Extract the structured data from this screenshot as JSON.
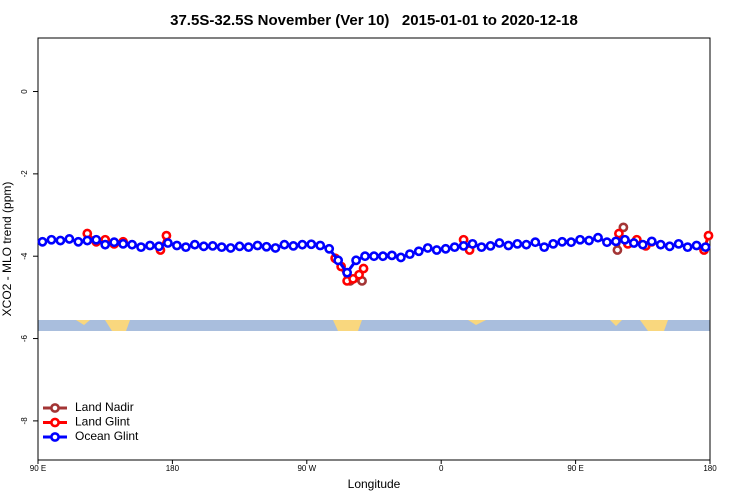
{
  "chart_data": {
    "type": "line",
    "title": "37.5S-32.5S November (Ver 10)   2015-01-01 to 2020-12-18",
    "x_label": "Longitude",
    "y_label": "XCO2 - MLO trend (ppm)",
    "xlim": [
      90,
      540
    ],
    "ylim": [
      -8.95,
      1.3
    ],
    "xticks": [
      {
        "value": 90,
        "label": "90 E"
      },
      {
        "value": 180,
        "label": "180"
      },
      {
        "value": 270,
        "label": "90 W"
      },
      {
        "value": 360,
        "label": "0"
      },
      {
        "value": 450,
        "label": "90 E"
      },
      {
        "value": 540,
        "label": "180"
      }
    ],
    "yticks": [
      0,
      -2,
      -4,
      -6,
      -8
    ],
    "legend": "bottom-left",
    "series": [
      {
        "name": "Land Nadir",
        "color": "#a33535",
        "x": [
          299,
          307,
          null,
          478,
          482
        ],
        "values": [
          -4.6,
          -4.6,
          null,
          -3.85,
          -3.3
        ]
      },
      {
        "name": "Land Glint",
        "color": "#ff0000",
        "x": [
          123,
          129,
          135,
          141,
          147,
          null,
          172,
          176,
          null,
          289,
          293,
          297,
          301,
          305,
          308,
          null,
          375,
          379,
          null,
          479,
          485,
          491,
          497,
          501,
          null,
          536,
          539
        ],
        "values": [
          -3.45,
          -3.65,
          -3.6,
          -3.7,
          -3.65,
          null,
          -3.85,
          -3.5,
          null,
          -4.05,
          -4.25,
          -4.6,
          -4.55,
          -4.45,
          -4.3,
          null,
          -3.6,
          -3.85,
          null,
          -3.45,
          -3.7,
          -3.6,
          -3.75,
          -3.65,
          null,
          -3.85,
          -3.5
        ]
      },
      {
        "name": "Ocean Glint",
        "color": "#0000ff",
        "x": [
          93,
          99,
          105,
          111,
          117,
          123,
          129,
          135,
          141,
          147,
          153,
          159,
          165,
          171,
          177,
          183,
          189,
          195,
          201,
          207,
          213,
          219,
          225,
          231,
          237,
          243,
          249,
          255,
          261,
          267,
          273,
          279,
          285,
          291,
          297,
          303,
          309,
          315,
          321,
          327,
          333,
          339,
          345,
          351,
          357,
          363,
          369,
          375,
          381,
          387,
          393,
          399,
          405,
          411,
          417,
          423,
          429,
          435,
          441,
          447,
          453,
          459,
          465,
          471,
          477,
          483,
          489,
          495,
          501,
          507,
          513,
          519,
          525,
          531,
          537
        ],
        "values": [
          -3.65,
          -3.6,
          -3.62,
          -3.58,
          -3.65,
          -3.62,
          -3.6,
          -3.72,
          -3.66,
          -3.7,
          -3.72,
          -3.78,
          -3.74,
          -3.76,
          -3.68,
          -3.74,
          -3.78,
          -3.72,
          -3.76,
          -3.75,
          -3.78,
          -3.8,
          -3.76,
          -3.78,
          -3.74,
          -3.77,
          -3.8,
          -3.72,
          -3.75,
          -3.72,
          -3.71,
          -3.74,
          -3.82,
          -4.1,
          -4.4,
          -4.1,
          -4.0,
          -4.0,
          -4.0,
          -3.98,
          -4.03,
          -3.95,
          -3.88,
          -3.8,
          -3.85,
          -3.82,
          -3.78,
          -3.75,
          -3.7,
          -3.78,
          -3.75,
          -3.68,
          -3.74,
          -3.7,
          -3.72,
          -3.66,
          -3.78,
          -3.7,
          -3.65,
          -3.66,
          -3.6,
          -3.62,
          -3.55,
          -3.66,
          -3.64,
          -3.6,
          -3.68,
          -3.72,
          -3.64,
          -3.72,
          -3.76,
          -3.7,
          -3.78,
          -3.74,
          -3.78
        ]
      }
    ]
  }
}
